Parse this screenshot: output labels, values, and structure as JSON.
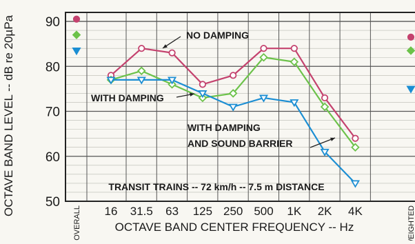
{
  "chart_data": {
    "type": "line",
    "ylabel": "OCTAVE BAND LEVEL -- dB re 20µPa",
    "xlabel": "OCTAVE BAND CENTER FREQUENCY -- Hz",
    "categories": [
      "16",
      "31.5",
      "63",
      "125",
      "250",
      "500",
      "1K",
      "2K",
      "4K"
    ],
    "ylim": [
      50,
      92
    ],
    "yticks": [
      50,
      60,
      70,
      80,
      90
    ],
    "grid": true,
    "overall_label": "OVERALL",
    "weighted_label": "A-WEIGHTED",
    "annotation": "TRANSIT TRAINS  --  72 km/h  --  7.5 m DISTANCE",
    "series": [
      {
        "name": "NO DAMPING",
        "label_lines": [
          "NO DAMPING"
        ],
        "color": "#c4426e",
        "marker": "circle",
        "values": [
          78,
          84,
          83,
          76,
          78,
          84,
          84,
          73,
          64
        ],
        "overall": 90.5,
        "a_weighted": 86.5
      },
      {
        "name": "WITH DAMPING",
        "label_lines": [
          "WITH DAMPING"
        ],
        "color": "#6cc24a",
        "marker": "diamond",
        "values": [
          77,
          79,
          76,
          73,
          74,
          82,
          81,
          71,
          62
        ],
        "overall": 87,
        "a_weighted": 83.5
      },
      {
        "name": "WITH DAMPING AND SOUND BARRIER",
        "label_lines": [
          "WITH DAMPING",
          "AND SOUND BARRIER"
        ],
        "color": "#1b8ed3",
        "marker": "triangle-down",
        "values": [
          77,
          77,
          77,
          74,
          71,
          73,
          72,
          61,
          54
        ],
        "overall": 83.5,
        "a_weighted": 75
      }
    ]
  }
}
